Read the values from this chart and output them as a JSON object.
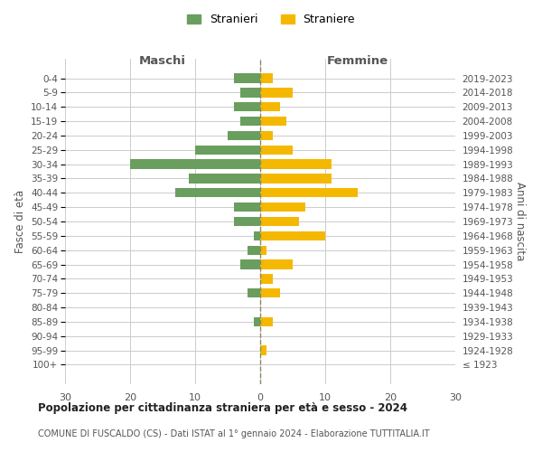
{
  "age_groups": [
    "100+",
    "95-99",
    "90-94",
    "85-89",
    "80-84",
    "75-79",
    "70-74",
    "65-69",
    "60-64",
    "55-59",
    "50-54",
    "45-49",
    "40-44",
    "35-39",
    "30-34",
    "25-29",
    "20-24",
    "15-19",
    "10-14",
    "5-9",
    "0-4"
  ],
  "birth_years": [
    "≤ 1923",
    "1924-1928",
    "1929-1933",
    "1934-1938",
    "1939-1943",
    "1944-1948",
    "1949-1953",
    "1954-1958",
    "1959-1963",
    "1964-1968",
    "1969-1973",
    "1974-1978",
    "1979-1983",
    "1984-1988",
    "1989-1993",
    "1994-1998",
    "1999-2003",
    "2004-2008",
    "2009-2013",
    "2014-2018",
    "2019-2023"
  ],
  "males": [
    0,
    0,
    0,
    1,
    0,
    2,
    0,
    3,
    2,
    1,
    4,
    4,
    13,
    11,
    20,
    10,
    5,
    3,
    4,
    3,
    4
  ],
  "females": [
    0,
    1,
    0,
    2,
    0,
    3,
    2,
    5,
    1,
    10,
    6,
    7,
    15,
    11,
    11,
    5,
    2,
    4,
    3,
    5,
    2
  ],
  "color_males": "#6a9e5e",
  "color_females": "#f5b800",
  "title": "Popolazione per cittadinanza straniera per età e sesso - 2024",
  "subtitle": "COMUNE DI FUSCALDO (CS) - Dati ISTAT al 1° gennaio 2024 - Elaborazione TUTTITALIA.IT",
  "legend_males": "Stranieri",
  "legend_females": "Straniere",
  "xlabel_left": "Maschi",
  "xlabel_right": "Femmine",
  "ylabel_left": "Fasce di età",
  "ylabel_right": "Anni di nascita",
  "xlim": 30,
  "background_color": "#ffffff",
  "grid_color": "#cccccc"
}
